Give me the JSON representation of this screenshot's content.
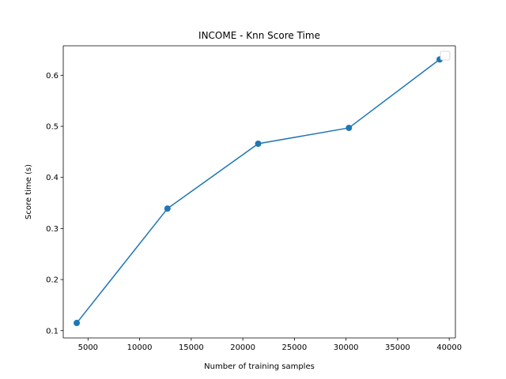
{
  "chart_data": {
    "type": "line",
    "title": "INCOME - Knn Score Time",
    "xlabel": "Number of training samples",
    "ylabel": "Score time (s)",
    "xlim": [
      2600,
      40600
    ],
    "ylim": [
      0.0857,
      0.6577
    ],
    "xticks": [
      5000,
      10000,
      15000,
      20000,
      25000,
      30000,
      35000,
      40000
    ],
    "yticks": [
      0.1,
      0.2,
      0.3,
      0.4,
      0.5,
      0.6
    ],
    "grid": false,
    "legend": "top-right, empty",
    "series": [
      {
        "color": "#1f77b4",
        "marker": "circle",
        "points": [
          {
            "x": 3907,
            "y": 0.115
          },
          {
            "x": 12698,
            "y": 0.339
          },
          {
            "x": 21489,
            "y": 0.466
          },
          {
            "x": 30280,
            "y": 0.497
          },
          {
            "x": 39071,
            "y": 0.631
          }
        ]
      }
    ]
  }
}
